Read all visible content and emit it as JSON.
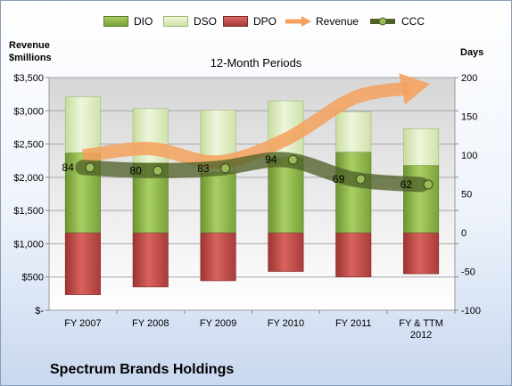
{
  "chart_data": {
    "type": "bar",
    "title": "12-Month Periods",
    "subtitle": "Spectrum Brands Holdings",
    "left_axis_label": [
      "Revenue",
      "$millions"
    ],
    "right_axis_label": "Days",
    "categories": [
      "FY 2007",
      "FY 2008",
      "FY 2009",
      "FY 2010",
      "FY 2011",
      "FY & TTM 2012"
    ],
    "left_ticks": [
      "$-",
      "$500",
      "$1,000",
      "$1,500",
      "$2,000",
      "$2,500",
      "$3,000",
      "$3,500"
    ],
    "left_ylim": [
      0,
      3500
    ],
    "right_ticks": [
      "-100",
      "-50",
      "0",
      "50",
      "100",
      "150",
      "200"
    ],
    "right_ylim": [
      -100,
      200
    ],
    "grid": true,
    "legend_position": "top",
    "series": [
      {
        "name": "DIO",
        "type": "bar",
        "unit": "days",
        "values": [
          103,
          90,
          78,
          97,
          104,
          87
        ],
        "color": "#8cb448"
      },
      {
        "name": "DSO",
        "type": "bar",
        "unit": "days",
        "values": [
          72,
          70,
          80,
          73,
          52,
          47
        ],
        "color": "#d7e8b4"
      },
      {
        "name": "DPO",
        "type": "bar",
        "unit": "days",
        "values": [
          -80,
          -70,
          -62,
          -50,
          -57,
          -53
        ],
        "color": "#c0504d"
      },
      {
        "name": "Revenue",
        "type": "line",
        "unit": "$millions",
        "values": [
          2320,
          2430,
          2230,
          2570,
          3190,
          3380
        ],
        "color": "#f5a15c"
      },
      {
        "name": "CCC",
        "type": "line",
        "unit": "days",
        "values": [
          84,
          80,
          83,
          94,
          69,
          62
        ],
        "color": "#4f6228"
      }
    ]
  }
}
